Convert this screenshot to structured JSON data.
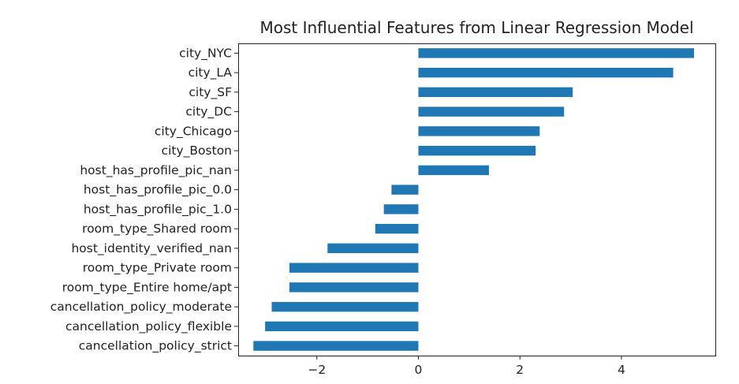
{
  "chart_data": {
    "type": "bar",
    "orientation": "horizontal",
    "title": "Most Influential Features from Linear Regression Model",
    "xlabel": "",
    "ylabel": "",
    "xlim": [
      -3.55,
      5.85
    ],
    "xticks": [
      -2,
      0,
      2,
      4
    ],
    "xtick_labels": [
      "−2",
      "0",
      "2",
      "4"
    ],
    "grid": false,
    "bar_color": "#1f77b4",
    "categories": [
      "city_NYC",
      "city_LA",
      "city_SF",
      "city_DC",
      "city_Chicago",
      "city_Boston",
      "host_has_profile_pic_nan",
      "host_has_profile_pic_0.0",
      "host_has_profile_pic_1.0",
      "room_type_Shared room",
      "host_identity_verified_nan",
      "room_type_Private room",
      "room_type_Entire home/apt",
      "cancellation_policy_moderate",
      "cancellation_policy_flexible",
      "cancellation_policy_strict"
    ],
    "values": [
      5.43,
      5.02,
      3.04,
      2.87,
      2.39,
      2.31,
      1.39,
      -0.53,
      -0.68,
      -0.85,
      -1.79,
      -2.54,
      -2.54,
      -2.89,
      -3.02,
      -3.25
    ]
  }
}
